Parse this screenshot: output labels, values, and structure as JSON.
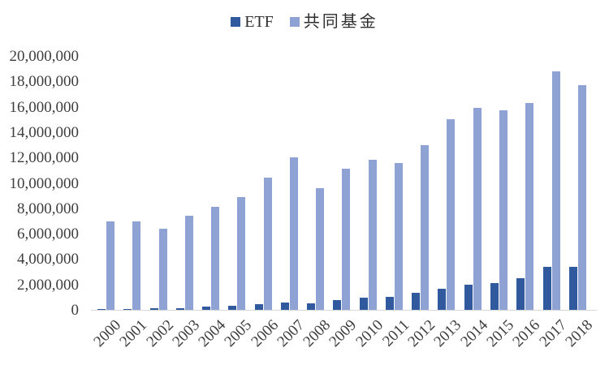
{
  "chart": {
    "background": "#ffffff",
    "axis_line_color": "#d8d8d8",
    "axis_text_color": "#3e3e3e"
  },
  "chart_data": {
    "type": "bar",
    "title": "",
    "xlabel": "",
    "ylabel": "",
    "categories": [
      "2000",
      "2001",
      "2002",
      "2003",
      "2004",
      "2005",
      "2006",
      "2007",
      "2008",
      "2009",
      "2010",
      "2011",
      "2012",
      "2013",
      "2014",
      "2015",
      "2016",
      "2017",
      "2018"
    ],
    "series": [
      {
        "name": "ETF",
        "color": "#30599E",
        "values": [
          70000,
          80000,
          100000,
          150000,
          230000,
          300000,
          420000,
          610000,
          530000,
          780000,
          990000,
          1050000,
          1340000,
          1680000,
          1970000,
          2100000,
          2520000,
          3400000,
          3370000
        ]
      },
      {
        "name": "共同基金",
        "color": "#8EA2D4",
        "values": [
          7000000,
          7000000,
          6400000,
          7400000,
          8100000,
          8900000,
          10400000,
          12000000,
          9600000,
          11100000,
          11800000,
          11600000,
          13000000,
          15000000,
          15900000,
          15700000,
          16300000,
          18800000,
          17700000
        ]
      }
    ],
    "ylim": [
      0,
      20000000
    ],
    "y_tick_step": 2000000,
    "y_ticks": [
      "20,000,000",
      "18,000,000",
      "16,000,000",
      "14,000,000",
      "12,000,000",
      "10,000,000",
      "8,000,000",
      "6,000,000",
      "4,000,000",
      "2,000,000",
      "0"
    ],
    "grid": false,
    "legend_position": "top-center",
    "x_label_rotation": -45
  }
}
